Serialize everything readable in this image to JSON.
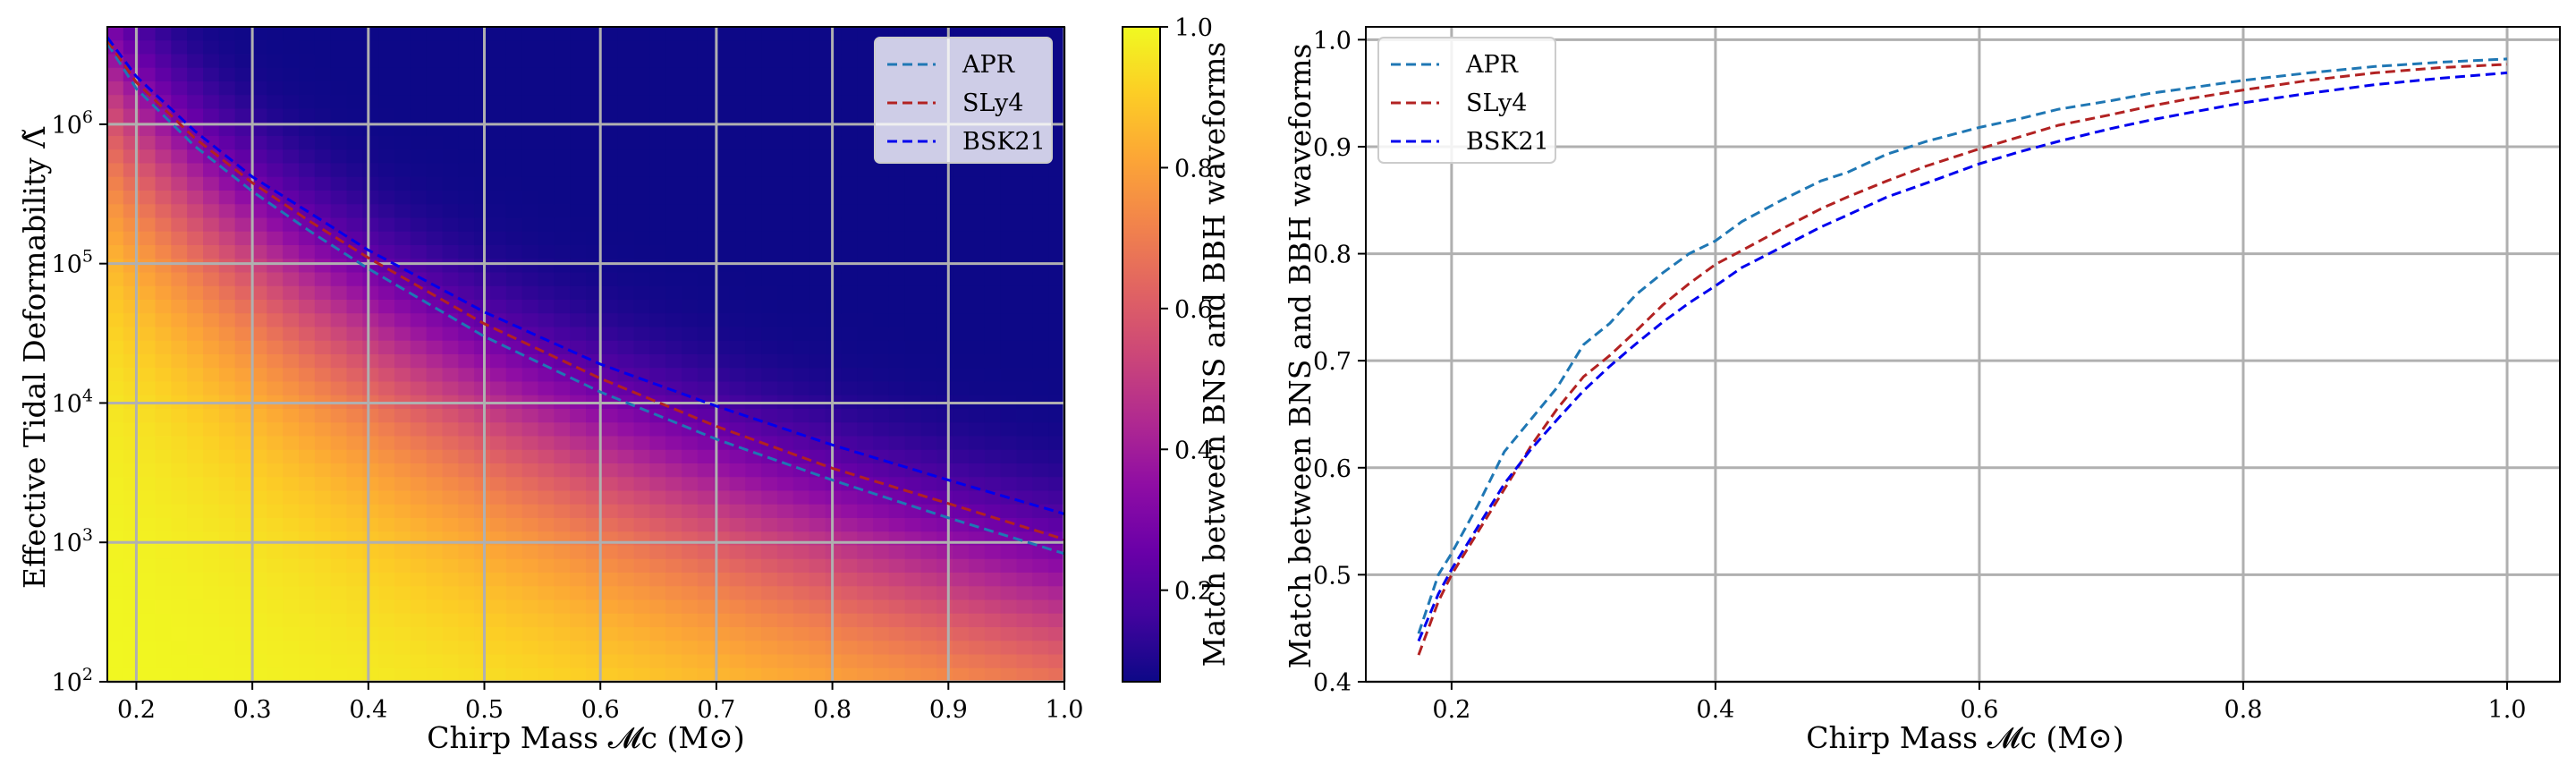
{
  "chart_data": [
    {
      "type": "heatmap",
      "xlabel": "Chirp Mass 𝓜c (M⊙)",
      "ylabel": "Effective Tidal Deformability Λ̃",
      "xlim": [
        0.175,
        1.0
      ],
      "ylim": [
        100,
        5000000
      ],
      "yscale": "log",
      "x_ticks": [
        0.2,
        0.3,
        0.4,
        0.5,
        0.6,
        0.7,
        0.8,
        0.9,
        1.0
      ],
      "x_tick_labels": [
        "0.2",
        "0.3",
        "0.4",
        "0.5",
        "0.6",
        "0.7",
        "0.8",
        "0.9",
        "1.0"
      ],
      "y_ticks": [
        100,
        1000,
        10000,
        100000,
        1000000
      ],
      "y_tick_labels": [
        [
          "10",
          "2"
        ],
        [
          "10",
          "3"
        ],
        [
          "10",
          "4"
        ],
        [
          "10",
          "5"
        ],
        [
          "10",
          "6"
        ]
      ],
      "grid": true,
      "colormap": "plasma",
      "colorbar": {
        "label": "Match between BNS and BBH waveforms",
        "range": [
          0.07,
          1.0
        ],
        "ticks": [
          0.2,
          0.4,
          0.6,
          0.8,
          1.0
        ],
        "tick_labels": [
          "0.2",
          "0.4",
          "0.6",
          "0.8",
          "1.0"
        ]
      },
      "legend": "top-right",
      "series": [
        {
          "name": "APR",
          "color": "#1f77b4",
          "x": [
            0.175,
            0.2,
            0.25,
            0.3,
            0.35,
            0.4,
            0.5,
            0.6,
            0.7,
            0.8,
            0.9,
            1.0
          ],
          "y": [
            3800000,
            1800000,
            700000,
            330000,
            170000,
            92000,
            30000,
            12000,
            5500,
            2800,
            1500,
            830
          ]
        },
        {
          "name": "SLy4",
          "color": "#b22222",
          "x": [
            0.175,
            0.2,
            0.25,
            0.3,
            0.35,
            0.4,
            0.5,
            0.6,
            0.7,
            0.8,
            0.9,
            1.0
          ],
          "y": [
            4000000,
            2000000,
            800000,
            380000,
            200000,
            110000,
            37000,
            15000,
            6800,
            3400,
            1900,
            1050
          ]
        },
        {
          "name": "BSK21",
          "color": "#0000ee",
          "x": [
            0.175,
            0.2,
            0.25,
            0.3,
            0.35,
            0.4,
            0.5,
            0.6,
            0.7,
            0.8,
            0.9,
            1.0
          ],
          "y": [
            4200000,
            2200000,
            900000,
            420000,
            230000,
            125000,
            45000,
            19000,
            9500,
            5000,
            2800,
            1600
          ]
        }
      ]
    },
    {
      "type": "line",
      "xlabel": "Chirp Mass 𝓜c (M⊙)",
      "ylabel": "Match between BNS and BBH waveforms",
      "xlim": [
        0.135,
        1.04
      ],
      "ylim": [
        0.4,
        1.012
      ],
      "x_ticks": [
        0.2,
        0.4,
        0.6,
        0.8,
        1.0
      ],
      "x_tick_labels": [
        "0.2",
        "0.4",
        "0.6",
        "0.8",
        "1.0"
      ],
      "y_ticks": [
        0.4,
        0.5,
        0.6,
        0.7,
        0.8,
        0.9,
        1.0
      ],
      "y_tick_labels": [
        "0.4",
        "0.5",
        "0.6",
        "0.7",
        "0.8",
        "0.9",
        "1.0"
      ],
      "grid": true,
      "legend": "top-left",
      "series": [
        {
          "name": "APR",
          "color": "#1f77b4",
          "x": [
            0.175,
            0.19,
            0.2,
            0.22,
            0.24,
            0.26,
            0.28,
            0.3,
            0.32,
            0.34,
            0.36,
            0.38,
            0.4,
            0.42,
            0.45,
            0.48,
            0.5,
            0.53,
            0.56,
            0.6,
            0.63,
            0.66,
            0.7,
            0.73,
            0.76,
            0.8,
            0.85,
            0.9,
            0.95,
            1.0
          ],
          "y": [
            0.445,
            0.5,
            0.52,
            0.565,
            0.615,
            0.645,
            0.675,
            0.715,
            0.735,
            0.762,
            0.782,
            0.8,
            0.812,
            0.83,
            0.85,
            0.868,
            0.876,
            0.893,
            0.905,
            0.918,
            0.926,
            0.935,
            0.943,
            0.95,
            0.955,
            0.962,
            0.969,
            0.975,
            0.979,
            0.982
          ]
        },
        {
          "name": "SLy4",
          "color": "#b22222",
          "x": [
            0.175,
            0.19,
            0.2,
            0.22,
            0.24,
            0.26,
            0.28,
            0.3,
            0.32,
            0.34,
            0.36,
            0.38,
            0.4,
            0.42,
            0.45,
            0.48,
            0.5,
            0.53,
            0.56,
            0.6,
            0.63,
            0.66,
            0.7,
            0.73,
            0.76,
            0.8,
            0.85,
            0.9,
            0.95,
            1.0
          ],
          "y": [
            0.425,
            0.475,
            0.5,
            0.54,
            0.58,
            0.62,
            0.655,
            0.685,
            0.705,
            0.728,
            0.752,
            0.772,
            0.79,
            0.803,
            0.823,
            0.842,
            0.853,
            0.868,
            0.882,
            0.898,
            0.909,
            0.92,
            0.93,
            0.938,
            0.945,
            0.953,
            0.962,
            0.969,
            0.974,
            0.977
          ]
        },
        {
          "name": "BSK21",
          "color": "#0000ee",
          "x": [
            0.175,
            0.19,
            0.2,
            0.22,
            0.24,
            0.26,
            0.28,
            0.3,
            0.32,
            0.34,
            0.36,
            0.38,
            0.4,
            0.42,
            0.45,
            0.48,
            0.5,
            0.53,
            0.56,
            0.6,
            0.63,
            0.66,
            0.7,
            0.73,
            0.76,
            0.8,
            0.85,
            0.9,
            0.95,
            1.0
          ],
          "y": [
            0.438,
            0.482,
            0.505,
            0.545,
            0.585,
            0.617,
            0.645,
            0.672,
            0.695,
            0.716,
            0.736,
            0.754,
            0.77,
            0.787,
            0.806,
            0.825,
            0.836,
            0.853,
            0.866,
            0.884,
            0.895,
            0.905,
            0.917,
            0.925,
            0.932,
            0.941,
            0.95,
            0.958,
            0.964,
            0.969
          ]
        }
      ]
    }
  ]
}
